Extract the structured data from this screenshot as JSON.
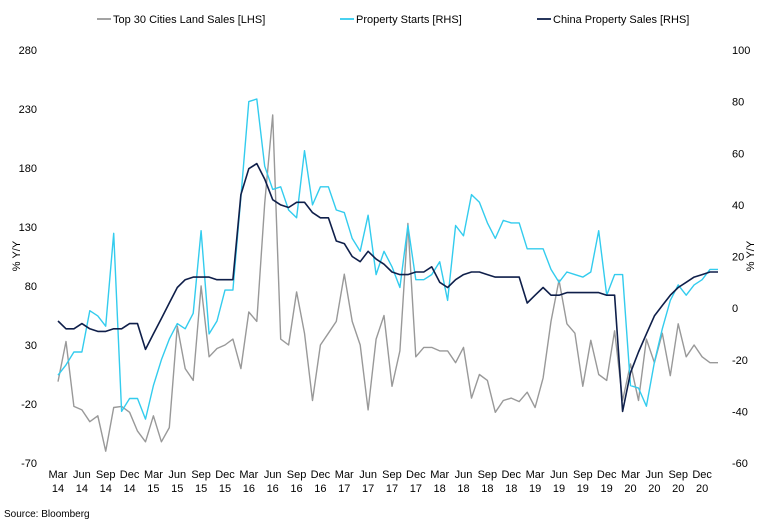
{
  "chart_data": {
    "type": "line",
    "title": "",
    "y_left_label": "% Y/Y",
    "y_right_label": "% Y/Y",
    "y_left_range": [
      -70,
      280
    ],
    "y_left_ticks": [
      280,
      230,
      180,
      130,
      80,
      30,
      -20,
      -70
    ],
    "y_right_range": [
      -60,
      100
    ],
    "y_right_ticks": [
      100,
      80,
      60,
      40,
      20,
      0,
      -20,
      -40,
      -60
    ],
    "grid": false,
    "legend_position": "top",
    "x_start": "2014-03",
    "x_end": "2020-12",
    "x_tick_labels": [
      {
        "month": "Mar",
        "year": "14"
      },
      {
        "month": "Jun",
        "year": "14"
      },
      {
        "month": "Sep",
        "year": "14"
      },
      {
        "month": "Dec",
        "year": "14"
      },
      {
        "month": "Mar",
        "year": "15"
      },
      {
        "month": "Jun",
        "year": "15"
      },
      {
        "month": "Sep",
        "year": "15"
      },
      {
        "month": "Dec",
        "year": "15"
      },
      {
        "month": "Mar",
        "year": "16"
      },
      {
        "month": "Jun",
        "year": "16"
      },
      {
        "month": "Sep",
        "year": "16"
      },
      {
        "month": "Dec",
        "year": "16"
      },
      {
        "month": "Mar",
        "year": "17"
      },
      {
        "month": "Jun",
        "year": "17"
      },
      {
        "month": "Sep",
        "year": "17"
      },
      {
        "month": "Dec",
        "year": "17"
      },
      {
        "month": "Mar",
        "year": "18"
      },
      {
        "month": "Jun",
        "year": "18"
      },
      {
        "month": "Sep",
        "year": "18"
      },
      {
        "month": "Dec",
        "year": "18"
      },
      {
        "month": "Mar",
        "year": "19"
      },
      {
        "month": "Jun",
        "year": "19"
      },
      {
        "month": "Sep",
        "year": "19"
      },
      {
        "month": "Dec",
        "year": "19"
      },
      {
        "month": "Mar",
        "year": "20"
      },
      {
        "month": "Jun",
        "year": "20"
      },
      {
        "month": "Sep",
        "year": "20"
      },
      {
        "month": "Dec",
        "year": "20"
      }
    ],
    "series": [
      {
        "name": "Top 30 Cities Land Sales [LHS]",
        "axis": "left",
        "color": "#999999",
        "values": [
          -1,
          33,
          -22,
          -25,
          -35,
          -30,
          -60,
          -23,
          -22,
          -27,
          -43,
          -52,
          -30,
          -52,
          -40,
          46,
          10,
          0,
          80,
          20,
          27,
          30,
          35,
          10,
          58,
          50,
          150,
          225,
          35,
          30,
          75,
          40,
          -17,
          30,
          40,
          50,
          90,
          50,
          30,
          -25,
          35,
          55,
          -5,
          25,
          133,
          20,
          28,
          28,
          25,
          25,
          15,
          28,
          -15,
          5,
          0,
          -27,
          -17,
          -15,
          -18,
          -10,
          -23,
          2,
          50,
          85,
          48,
          40,
          -5,
          34,
          5,
          0,
          42,
          -17,
          14,
          -17,
          35,
          15,
          40,
          4,
          48,
          20,
          30,
          20,
          15,
          15
        ]
      },
      {
        "name": "Property Starts [RHS]",
        "axis": "right",
        "color": "#33ccee",
        "values": [
          -26,
          -22,
          -17,
          -17,
          -1,
          -3,
          -7,
          29,
          -40,
          -35,
          -35,
          -43,
          -30,
          -20,
          -12,
          -6,
          -8,
          -2,
          30,
          -10,
          -5,
          7,
          7,
          43,
          80,
          81,
          55,
          46,
          47,
          38,
          35,
          61,
          40,
          47,
          47,
          38,
          37,
          27,
          22,
          36,
          13,
          22,
          16,
          8,
          32,
          11,
          11,
          13,
          18,
          3,
          32,
          28,
          44,
          41,
          33,
          27,
          34,
          33,
          33,
          23,
          23,
          23,
          15,
          10,
          14,
          13,
          12,
          14,
          30,
          5,
          13,
          13,
          -30,
          -31,
          -38,
          -21,
          -8,
          3,
          9,
          5,
          9,
          11,
          15,
          15
        ]
      },
      {
        "name": "China Property Sales [RHS]",
        "axis": "right",
        "color": "#0f1f4a",
        "values": [
          -5,
          -8,
          -8,
          -6,
          -8,
          -9,
          -9,
          -8,
          -8,
          -6,
          -6,
          -16,
          -10,
          -4,
          2,
          8,
          11,
          12,
          12,
          12,
          11,
          11,
          11,
          44,
          54,
          56,
          50,
          42,
          40,
          39,
          41,
          41,
          37,
          35,
          35,
          26,
          25,
          20,
          18,
          22,
          19,
          17,
          14,
          13,
          13,
          14,
          14,
          16,
          10,
          8,
          11,
          13,
          14,
          14,
          13,
          12,
          12,
          12,
          12,
          2,
          5,
          8,
          5,
          5,
          6,
          6,
          6,
          6,
          6,
          5,
          5,
          -40,
          -25,
          -17,
          -10,
          -3,
          1,
          5,
          8,
          10,
          12,
          13,
          14,
          14
        ]
      }
    ]
  },
  "source_text": "Source: Bloomberg"
}
